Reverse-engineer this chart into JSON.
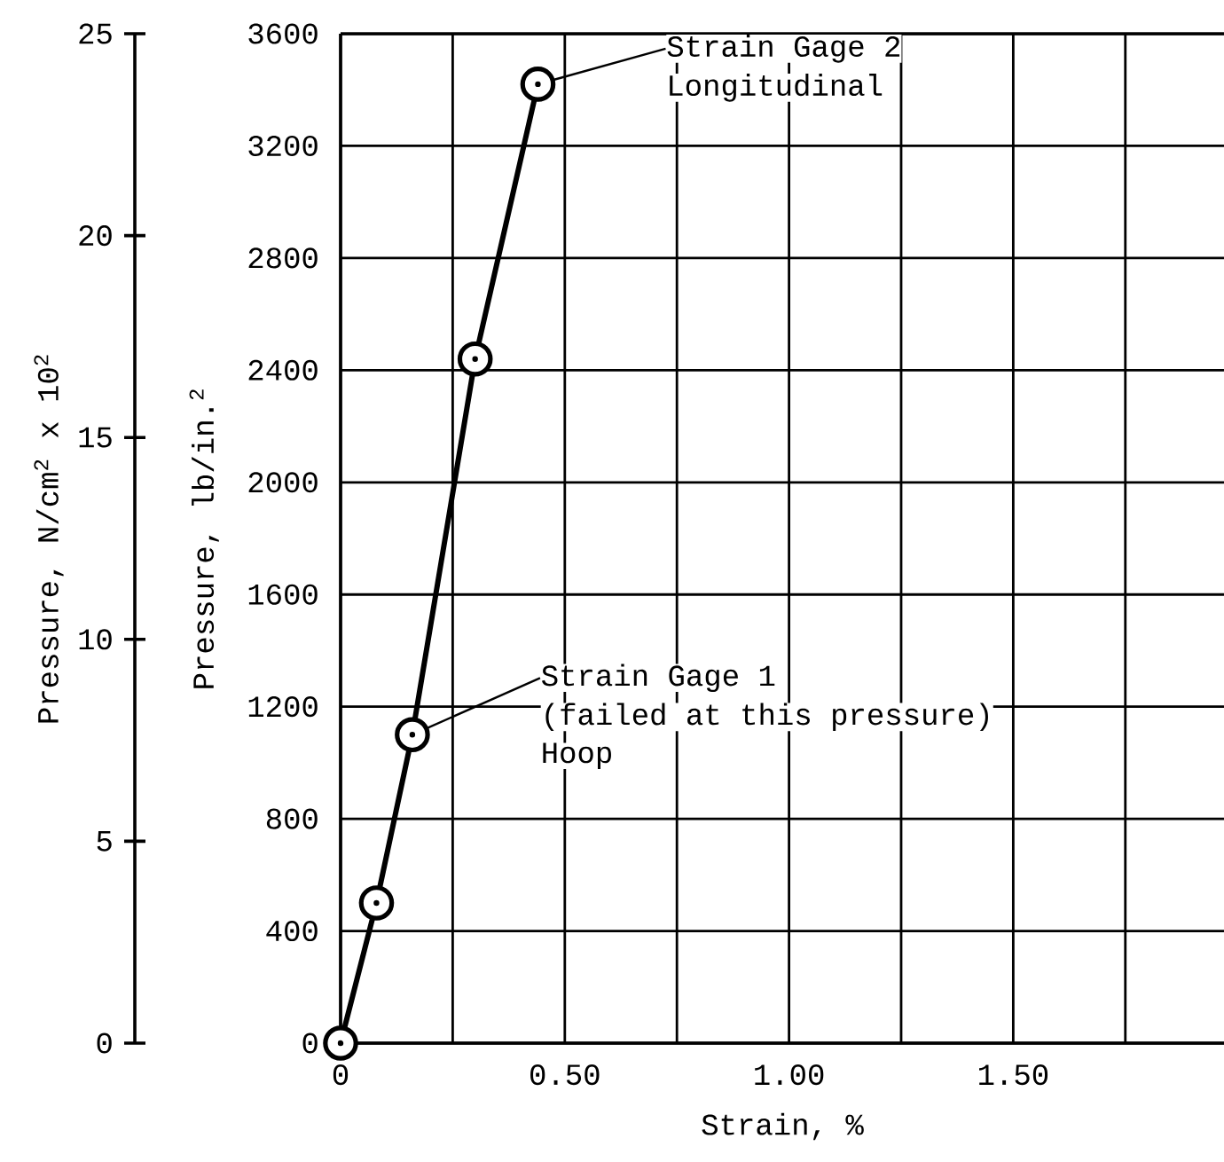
{
  "chart_data": {
    "type": "line",
    "xlabel": "Strain, %",
    "ylabel": "Pressure, lb/in.$^{2}$",
    "y2label": "Pressure, N/cm$^{2}$ x 10$^{2}$",
    "x": [
      0,
      0.08,
      0.16,
      0.3,
      0.44
    ],
    "series": [
      {
        "color": "#000000",
        "values": [
          0,
          500,
          1100,
          2440,
          3420
        ]
      }
    ],
    "xlim": [
      0,
      1.97
    ],
    "xticks": [
      {
        "value": 0,
        "label": "0"
      },
      {
        "value": 0.25,
        "label": null
      },
      {
        "value": 0.5,
        "label": "0.50"
      },
      {
        "value": 0.75,
        "label": null
      },
      {
        "value": 1.0,
        "label": "1.00"
      },
      {
        "value": 1.25,
        "label": null
      },
      {
        "value": 1.5,
        "label": "1.50"
      },
      {
        "value": 1.75,
        "label": null
      }
    ],
    "ylim": [
      0,
      3600
    ],
    "yticks": [
      0,
      400,
      800,
      1200,
      1600,
      2000,
      2400,
      2800,
      3200,
      3600
    ],
    "y2lim": [
      0,
      25
    ],
    "y2ticks": [
      0,
      5,
      10,
      15,
      20,
      25
    ],
    "grid": true,
    "marker": "circle",
    "line_style": "solid",
    "annotations": [
      {
        "text": "Strain Gage 2",
        "x": 0.44,
        "y": 3420
      },
      "Longitudinal",
      {
        "text": "Strain Gage 1",
        "x": 0.16,
        "y": 1100
      },
      "(failed at this pressure)",
      "Hoop"
    ]
  }
}
